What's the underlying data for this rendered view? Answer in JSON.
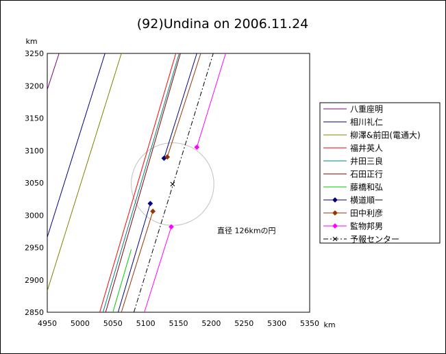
{
  "chart_data": {
    "type": "line",
    "title": "(92)Undina on 2006.11.24",
    "xlabel": "km",
    "ylabel": "km",
    "xlim": [
      4950,
      5350
    ],
    "ylim": [
      2850,
      3250
    ],
    "xticks": [
      4950,
      5000,
      5050,
      5100,
      5150,
      5200,
      5250,
      5300,
      5350
    ],
    "yticks": [
      2850,
      2900,
      2950,
      3000,
      3050,
      3100,
      3150,
      3200,
      3250
    ],
    "grid": false,
    "legend_position": "right",
    "series": [
      {
        "name": "八重座明",
        "color": "#800080",
        "marker": "none",
        "dash": "solid",
        "points": [
          [
            4950,
            3194
          ],
          [
            4968,
            3250
          ]
        ]
      },
      {
        "name": "相川礼仁",
        "color": "#000080",
        "marker": "none",
        "dash": "solid",
        "points": [
          [
            4950,
            2966
          ],
          [
            5038,
            3250
          ]
        ]
      },
      {
        "name": "柳澤&前田(電通大)",
        "color": "#808000",
        "marker": "none",
        "dash": "solid",
        "points": [
          [
            4950,
            2883
          ],
          [
            5063,
            3250
          ]
        ]
      },
      {
        "name": "福井英人",
        "color": "#ff0000",
        "marker": "none",
        "dash": "solid",
        "points": [
          [
            5030,
            2850
          ],
          [
            5146,
            3250
          ]
        ]
      },
      {
        "name": "井田三良",
        "color": "#008080",
        "marker": "none",
        "dash": "solid",
        "points": [
          [
            5035,
            2850
          ],
          [
            5151,
            3250
          ]
        ]
      },
      {
        "name": "石田正行",
        "color": "#800000",
        "marker": "none",
        "dash": "solid",
        "points": [
          [
            5039,
            2850
          ],
          [
            5153,
            3250
          ]
        ]
      },
      {
        "name": "藤橋和弘",
        "color": "#00cc00",
        "marker": "none",
        "dash": "solid",
        "points": [
          [
            5050,
            2850
          ],
          [
            5078,
            2947
          ]
        ]
      },
      {
        "name": "横道順一",
        "color": "#000080",
        "marker": "diamond",
        "dash": "solid",
        "points": [
          [
            5058,
            2850
          ],
          [
            5107,
            3018
          ],
          [
            5178,
            3250
          ]
        ],
        "markers": [
          [
            5107,
            3018
          ],
          [
            5128,
            3088
          ]
        ],
        "segments": [
          [
            [
              5058,
              2850
            ],
            [
              5107,
              3018
            ]
          ],
          [
            [
              5128,
              3088
            ],
            [
              5178,
              3250
            ]
          ]
        ]
      },
      {
        "name": "田中利彦",
        "color": "#993300",
        "marker": "diamond",
        "dash": "solid",
        "points": [
          [
            5063,
            2850
          ],
          [
            5111,
            3006
          ],
          [
            5184,
            3250
          ]
        ],
        "markers": [
          [
            5111,
            3006
          ],
          [
            5133,
            3090
          ]
        ],
        "segments": [
          [
            [
              5063,
              2850
            ],
            [
              5111,
              3006
            ]
          ],
          [
            [
              5133,
              3090
            ],
            [
              5184,
              3250
            ]
          ]
        ]
      },
      {
        "name": "監物邦男",
        "color": "#ff00ff",
        "marker": "diamond",
        "dash": "solid",
        "points": [
          [
            5098,
            2850
          ],
          [
            5139,
            2982
          ],
          [
            5178,
            3105
          ],
          [
            5222,
            3250
          ]
        ],
        "markers": [
          [
            5139,
            2982
          ],
          [
            5178,
            3105
          ]
        ],
        "segments": [
          [
            [
              5098,
              2850
            ],
            [
              5139,
              2982
            ]
          ],
          [
            [
              5178,
              3105
            ],
            [
              5222,
              3250
            ]
          ]
        ]
      },
      {
        "name": "予報センター",
        "color": "#000000",
        "marker": "x",
        "dash": "dashdot",
        "points": [
          [
            5082,
            2850
          ],
          [
            5203,
            3250
          ]
        ],
        "markers": [
          [
            5141,
            3048
          ]
        ]
      }
    ],
    "annotations": [
      {
        "text": "直径 126kmの円",
        "x": 5209,
        "y": 2972
      }
    ],
    "circle": {
      "cx": 5141,
      "cy": 3048,
      "r": 63,
      "color": "#c0c0c0"
    }
  }
}
